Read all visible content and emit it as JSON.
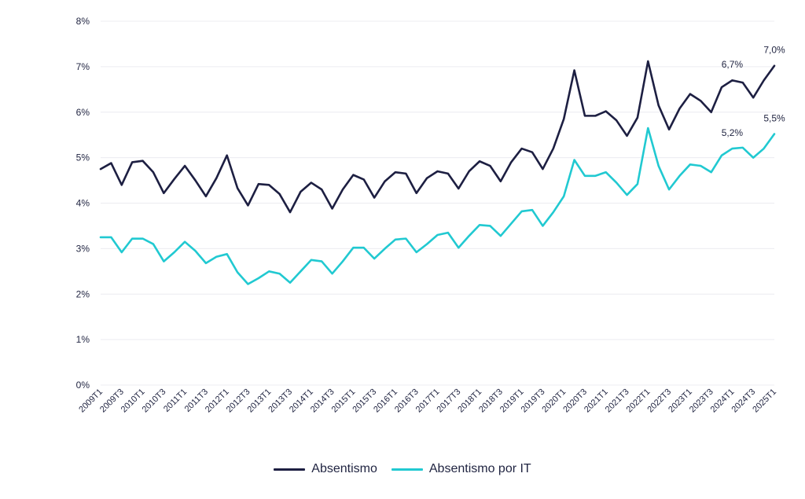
{
  "chart_data": {
    "type": "line",
    "title": "",
    "xlabel": "",
    "ylabel": "",
    "ylim": [
      0,
      8
    ],
    "y_ticks": [
      "0%",
      "1%",
      "2%",
      "3%",
      "4%",
      "5%",
      "6%",
      "7%",
      "8%"
    ],
    "grid": true,
    "legend_position": "bottom",
    "x_tick_labels": [
      "2009T1",
      "2009T3",
      "2010T1",
      "2010T3",
      "2011T1",
      "2011T3",
      "2012T1",
      "2012T3",
      "2013T1",
      "2013T3",
      "2014T1",
      "2014T3",
      "2015T1",
      "2015T3",
      "2016T1",
      "2016T3",
      "2017T1",
      "2017T3",
      "2018T1",
      "2018T3",
      "2019T1",
      "2019T3",
      "2020T1",
      "2020T3",
      "2021T1",
      "2021T3",
      "2022T1",
      "2022T3",
      "2023T1",
      "2023T3",
      "2024T1",
      "2024T3",
      "2025T1"
    ],
    "x": [
      "2009T1",
      "2009T2",
      "2009T3",
      "2009T4",
      "2010T1",
      "2010T2",
      "2010T3",
      "2010T4",
      "2011T1",
      "2011T2",
      "2011T3",
      "2011T4",
      "2012T1",
      "2012T2",
      "2012T3",
      "2012T4",
      "2013T1",
      "2013T2",
      "2013T3",
      "2013T4",
      "2014T1",
      "2014T2",
      "2014T3",
      "2014T4",
      "2015T1",
      "2015T2",
      "2015T3",
      "2015T4",
      "2016T1",
      "2016T2",
      "2016T3",
      "2016T4",
      "2017T1",
      "2017T2",
      "2017T3",
      "2017T4",
      "2018T1",
      "2018T2",
      "2018T3",
      "2018T4",
      "2019T1",
      "2019T2",
      "2019T3",
      "2019T4",
      "2020T1",
      "2020T2",
      "2020T3",
      "2020T4",
      "2021T1",
      "2021T2",
      "2021T3",
      "2021T4",
      "2022T1",
      "2022T2",
      "2022T3",
      "2022T4",
      "2023T1",
      "2023T2",
      "2023T3",
      "2023T4",
      "2024T1",
      "2024T2",
      "2024T3",
      "2024T4",
      "2025T1"
    ],
    "series": [
      {
        "name": "Absentismo",
        "color": "#1d1f42",
        "values": [
          4.75,
          4.88,
          4.4,
          4.9,
          4.93,
          4.68,
          4.22,
          4.53,
          4.82,
          4.5,
          4.15,
          4.55,
          5.05,
          4.33,
          3.95,
          4.42,
          4.4,
          4.2,
          3.8,
          4.25,
          4.45,
          4.3,
          3.88,
          4.3,
          4.62,
          4.52,
          4.12,
          4.48,
          4.68,
          4.65,
          4.22,
          4.55,
          4.7,
          4.65,
          4.32,
          4.7,
          4.92,
          4.82,
          4.48,
          4.9,
          5.2,
          5.12,
          4.75,
          5.2,
          5.85,
          6.92,
          5.92,
          5.92,
          6.02,
          5.82,
          5.48,
          5.88,
          7.12,
          6.15,
          5.62,
          6.08,
          6.4,
          6.25,
          6.0,
          6.55,
          6.7,
          6.65,
          6.32,
          6.7,
          7.02
        ]
      },
      {
        "name": "Absentismo por IT",
        "color": "#21c9d1",
        "values": [
          3.25,
          3.25,
          2.92,
          3.22,
          3.22,
          3.1,
          2.72,
          2.92,
          3.15,
          2.95,
          2.68,
          2.82,
          2.88,
          2.48,
          2.22,
          2.35,
          2.5,
          2.45,
          2.25,
          2.5,
          2.75,
          2.72,
          2.45,
          2.72,
          3.02,
          3.02,
          2.78,
          3.0,
          3.2,
          3.22,
          2.92,
          3.1,
          3.3,
          3.35,
          3.02,
          3.28,
          3.52,
          3.5,
          3.28,
          3.55,
          3.82,
          3.85,
          3.5,
          3.8,
          4.15,
          4.95,
          4.6,
          4.6,
          4.68,
          4.45,
          4.18,
          4.42,
          5.65,
          4.82,
          4.3,
          4.6,
          4.85,
          4.82,
          4.68,
          5.05,
          5.2,
          5.22,
          5.0,
          5.2,
          5.52
        ]
      }
    ],
    "annotations": [
      {
        "series": 0,
        "index": 60,
        "text": "6,7%"
      },
      {
        "series": 0,
        "index": 64,
        "text": "7,0%"
      },
      {
        "series": 1,
        "index": 60,
        "text": "5,2%"
      },
      {
        "series": 1,
        "index": 64,
        "text": "5,5%"
      }
    ]
  }
}
